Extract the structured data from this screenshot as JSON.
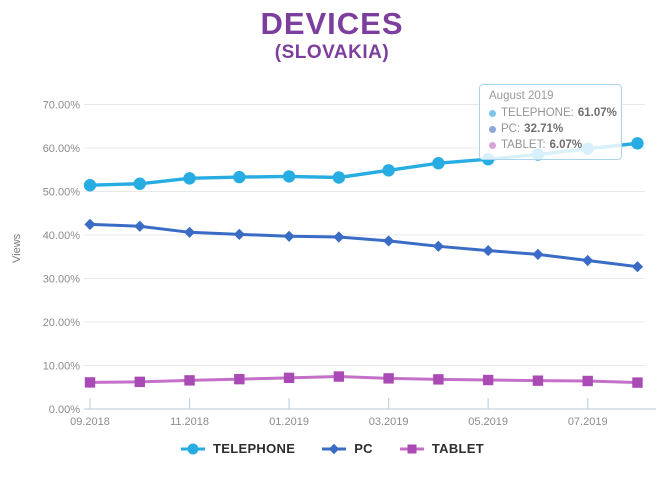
{
  "title": "DEVICES",
  "subtitle": "(SLOVAKIA)",
  "colors": {
    "title_purple": "#7d3f9d",
    "gridline": "#e8e8e8",
    "axis": "#c3d4e4",
    "axis_text": "#8c8c8c",
    "legend_text": "#2e2e2e",
    "tooltip_border": "#aad4ec"
  },
  "chart_data": {
    "type": "line",
    "title": "DEVICES",
    "subtitle": "(SLOVAKIA)",
    "ylabel": "Views",
    "grid": true,
    "legend_position": "bottom",
    "ylim": [
      0,
      70
    ],
    "y_ticks": [
      "0.00%",
      "10.00%",
      "20.00%",
      "30.00%",
      "40.00%",
      "50.00%",
      "60.00%",
      "70.00%"
    ],
    "x": [
      "09.2018",
      "10.2018",
      "11.2018",
      "12.2018",
      "01.2019",
      "02.2019",
      "03.2019",
      "04.2019",
      "05.2019",
      "06.2019",
      "07.2019",
      "08.2019"
    ],
    "x_tick_labels": [
      "09.2018",
      "11.2018",
      "01.2019",
      "03.2019",
      "05.2019",
      "07.2019"
    ],
    "series": [
      {
        "name": "TELEPHONE",
        "color": "#28ade3",
        "marker": "circle",
        "values": [
          51.44,
          51.78,
          53.02,
          53.31,
          53.47,
          53.22,
          54.87,
          56.5,
          57.42,
          58.52,
          59.85,
          61.07
        ]
      },
      {
        "name": "PC",
        "color": "#3a6cc6",
        "marker": "diamond",
        "values": [
          42.45,
          42.02,
          40.62,
          40.15,
          39.7,
          39.54,
          38.64,
          37.4,
          36.42,
          35.54,
          34.14,
          32.71
        ]
      },
      {
        "name": "TABLET",
        "color": "#aa4ab4",
        "line_color": "#c470c8",
        "marker": "square",
        "values": [
          6.11,
          6.24,
          6.58,
          6.86,
          7.16,
          7.46,
          7.04,
          6.81,
          6.66,
          6.51,
          6.44,
          6.07
        ]
      }
    ]
  },
  "tooltip": {
    "title": "August 2019",
    "items": [
      {
        "label": "TELEPHONE:",
        "value": "61.07%",
        "dot_color": "#7bc6ea"
      },
      {
        "label": "PC:",
        "value": "32.71%",
        "dot_color": "#8ea6d8"
      },
      {
        "label": "TABLET:",
        "value": "6.07%",
        "dot_color": "#d8a4da"
      }
    ]
  }
}
